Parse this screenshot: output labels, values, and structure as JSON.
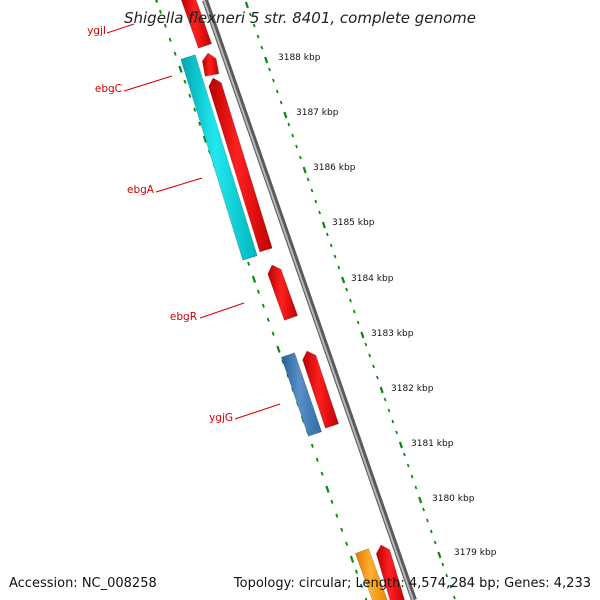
{
  "title": "Shigella flexneri 5 str. 8401, complete genome",
  "ticks": [
    {
      "label": "3188 kbp"
    },
    {
      "label": "3187 kbp"
    },
    {
      "label": "3186 kbp"
    },
    {
      "label": "3185 kbp"
    },
    {
      "label": "3184 kbp"
    },
    {
      "label": "3183 kbp"
    },
    {
      "label": "3182 kbp"
    },
    {
      "label": "3181 kbp"
    },
    {
      "label": "3180 kbp"
    },
    {
      "label": "3179 kbp"
    }
  ],
  "gene_labels": [
    {
      "name": "ygjI"
    },
    {
      "name": "ebgC"
    },
    {
      "name": "ebgA"
    },
    {
      "name": "ebgR"
    },
    {
      "name": "ygjG"
    }
  ],
  "feature_colors": {
    "cds": "#ff0000",
    "cds_alt": "#3e7ab5",
    "cds_highlight": "#00c9d0",
    "orange": "#ff9600",
    "backbone": "#888888",
    "ticks": "#0a8a0a",
    "label_line": "#d40000"
  },
  "footer": {
    "accession": "Accession: NC_008258",
    "summary": "Topology: circular; Length: 4,574,284 bp; Genes: 4,233"
  }
}
